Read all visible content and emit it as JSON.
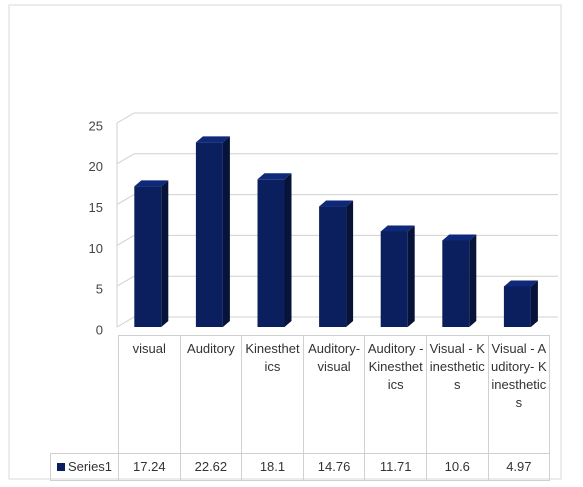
{
  "chart_data": {
    "type": "bar3d",
    "categories": [
      "visual",
      "Auditory",
      "Kinesthetics",
      "Auditory-visual",
      "Auditory - Kinesthetics",
      "Visual - Kinesthetics",
      "Visual - Auditory- Kinesthetics"
    ],
    "series": [
      {
        "name": "Series1",
        "color": "#0b1f5e",
        "values": [
          17.24,
          22.62,
          18.1,
          14.76,
          11.71,
          10.6,
          4.97
        ]
      }
    ],
    "ylim": [
      0,
      25
    ],
    "yticks": [
      0,
      5,
      10,
      15,
      20,
      25
    ],
    "grid": true,
    "data_table": true
  }
}
